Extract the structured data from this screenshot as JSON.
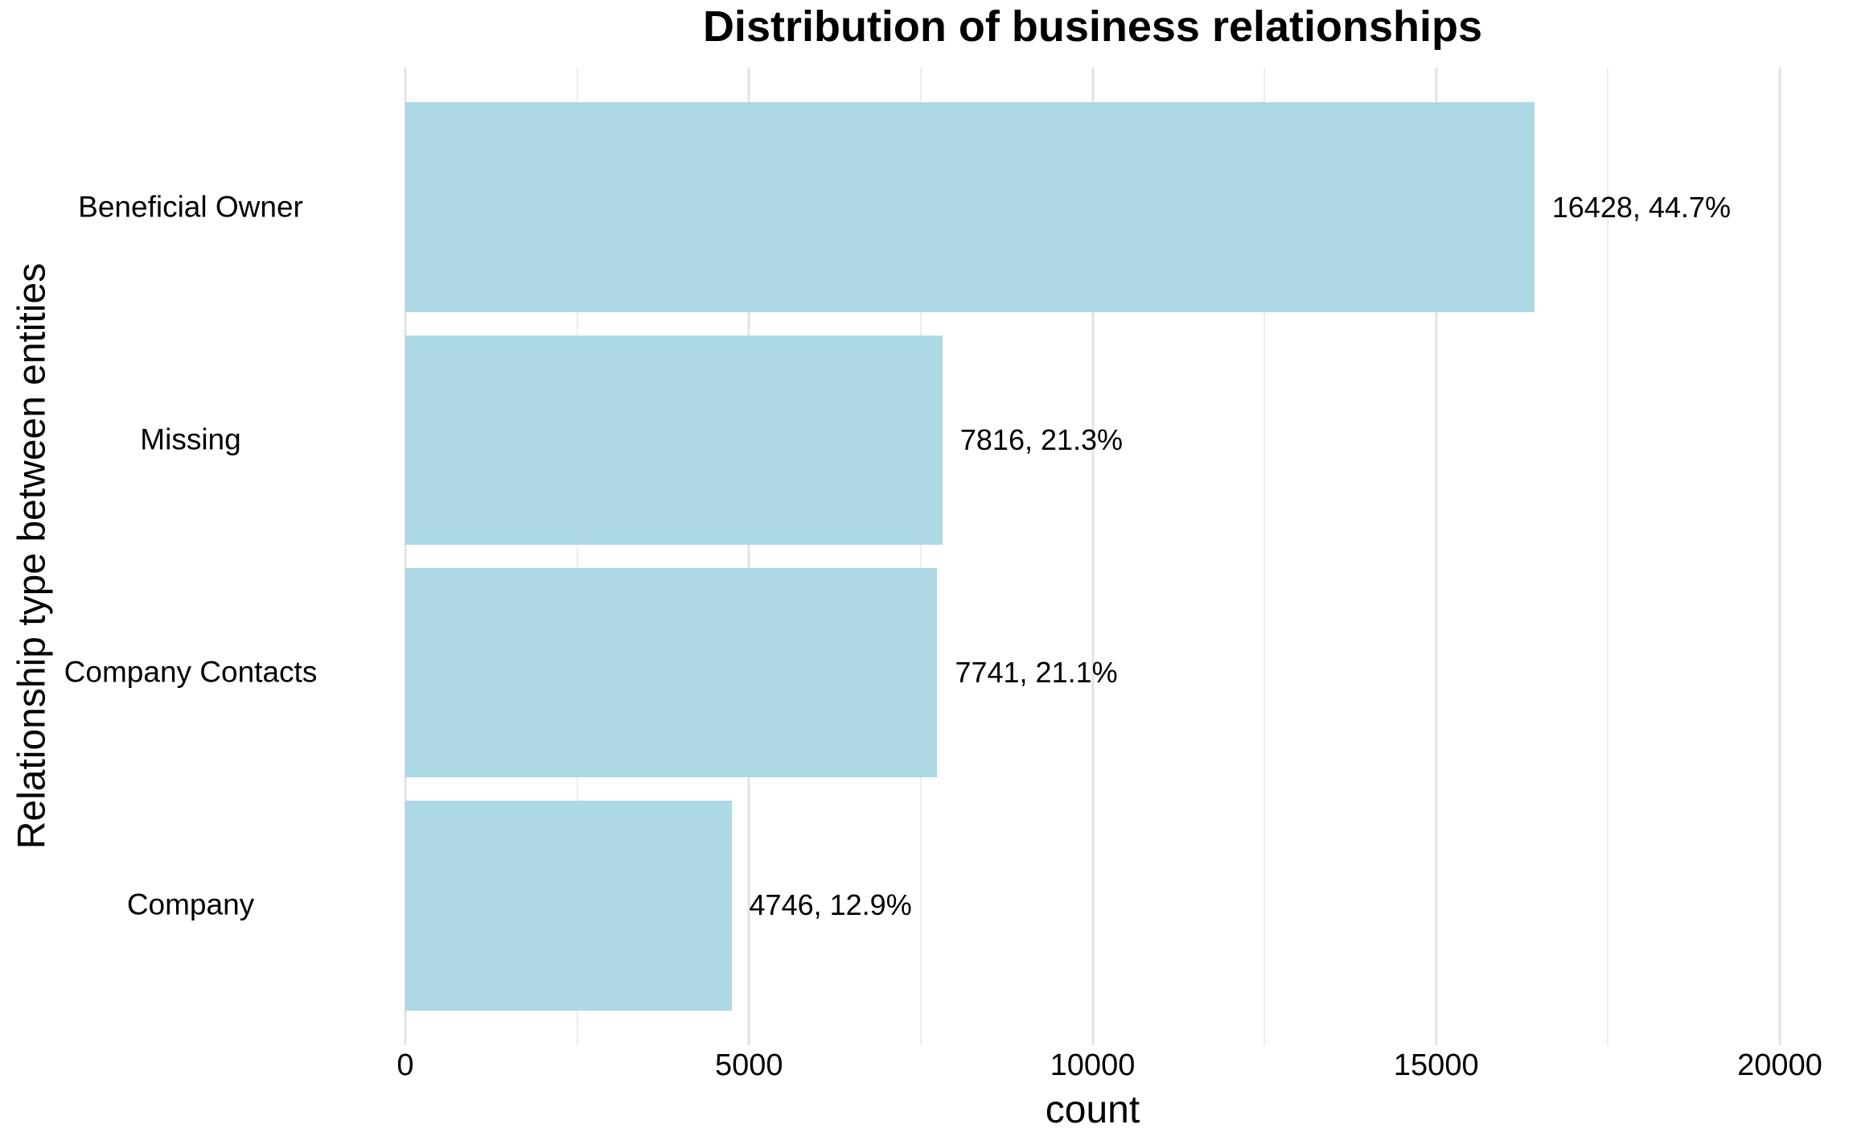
{
  "chart_data": {
    "type": "bar",
    "orientation": "horizontal",
    "title": "Distribution of business relationships",
    "xlabel": "count",
    "ylabel": "Relationship type between entities",
    "categories": [
      "Beneficial Owner",
      "Missing",
      "Company Contacts",
      "Company"
    ],
    "values": [
      16428,
      7816,
      7741,
      4746
    ],
    "percentages": [
      44.7,
      21.3,
      21.1,
      12.9
    ],
    "value_labels": [
      "16428, 44.7%",
      "7816, 21.3%",
      "7741, 21.1%",
      "4746, 12.9%"
    ],
    "xlim": [
      0,
      20000
    ],
    "x_major_ticks": [
      0,
      5000,
      10000,
      15000,
      20000
    ],
    "x_tick_labels": [
      "0",
      "5000",
      "10000",
      "15000",
      "20000"
    ],
    "x_minor_ticks": [
      2500,
      7500,
      12500,
      17500
    ],
    "bar_width_fraction": 0.9,
    "legend": "none",
    "grid": "vertical major and minor gridlines, no axis lines, no tick marks",
    "colors": {
      "bar_fill": "#ADD8E6",
      "background": "#FFFFFF",
      "grid_major": "#E3E3E3",
      "grid_minor": "#EDEDED",
      "text": "#000000"
    }
  }
}
